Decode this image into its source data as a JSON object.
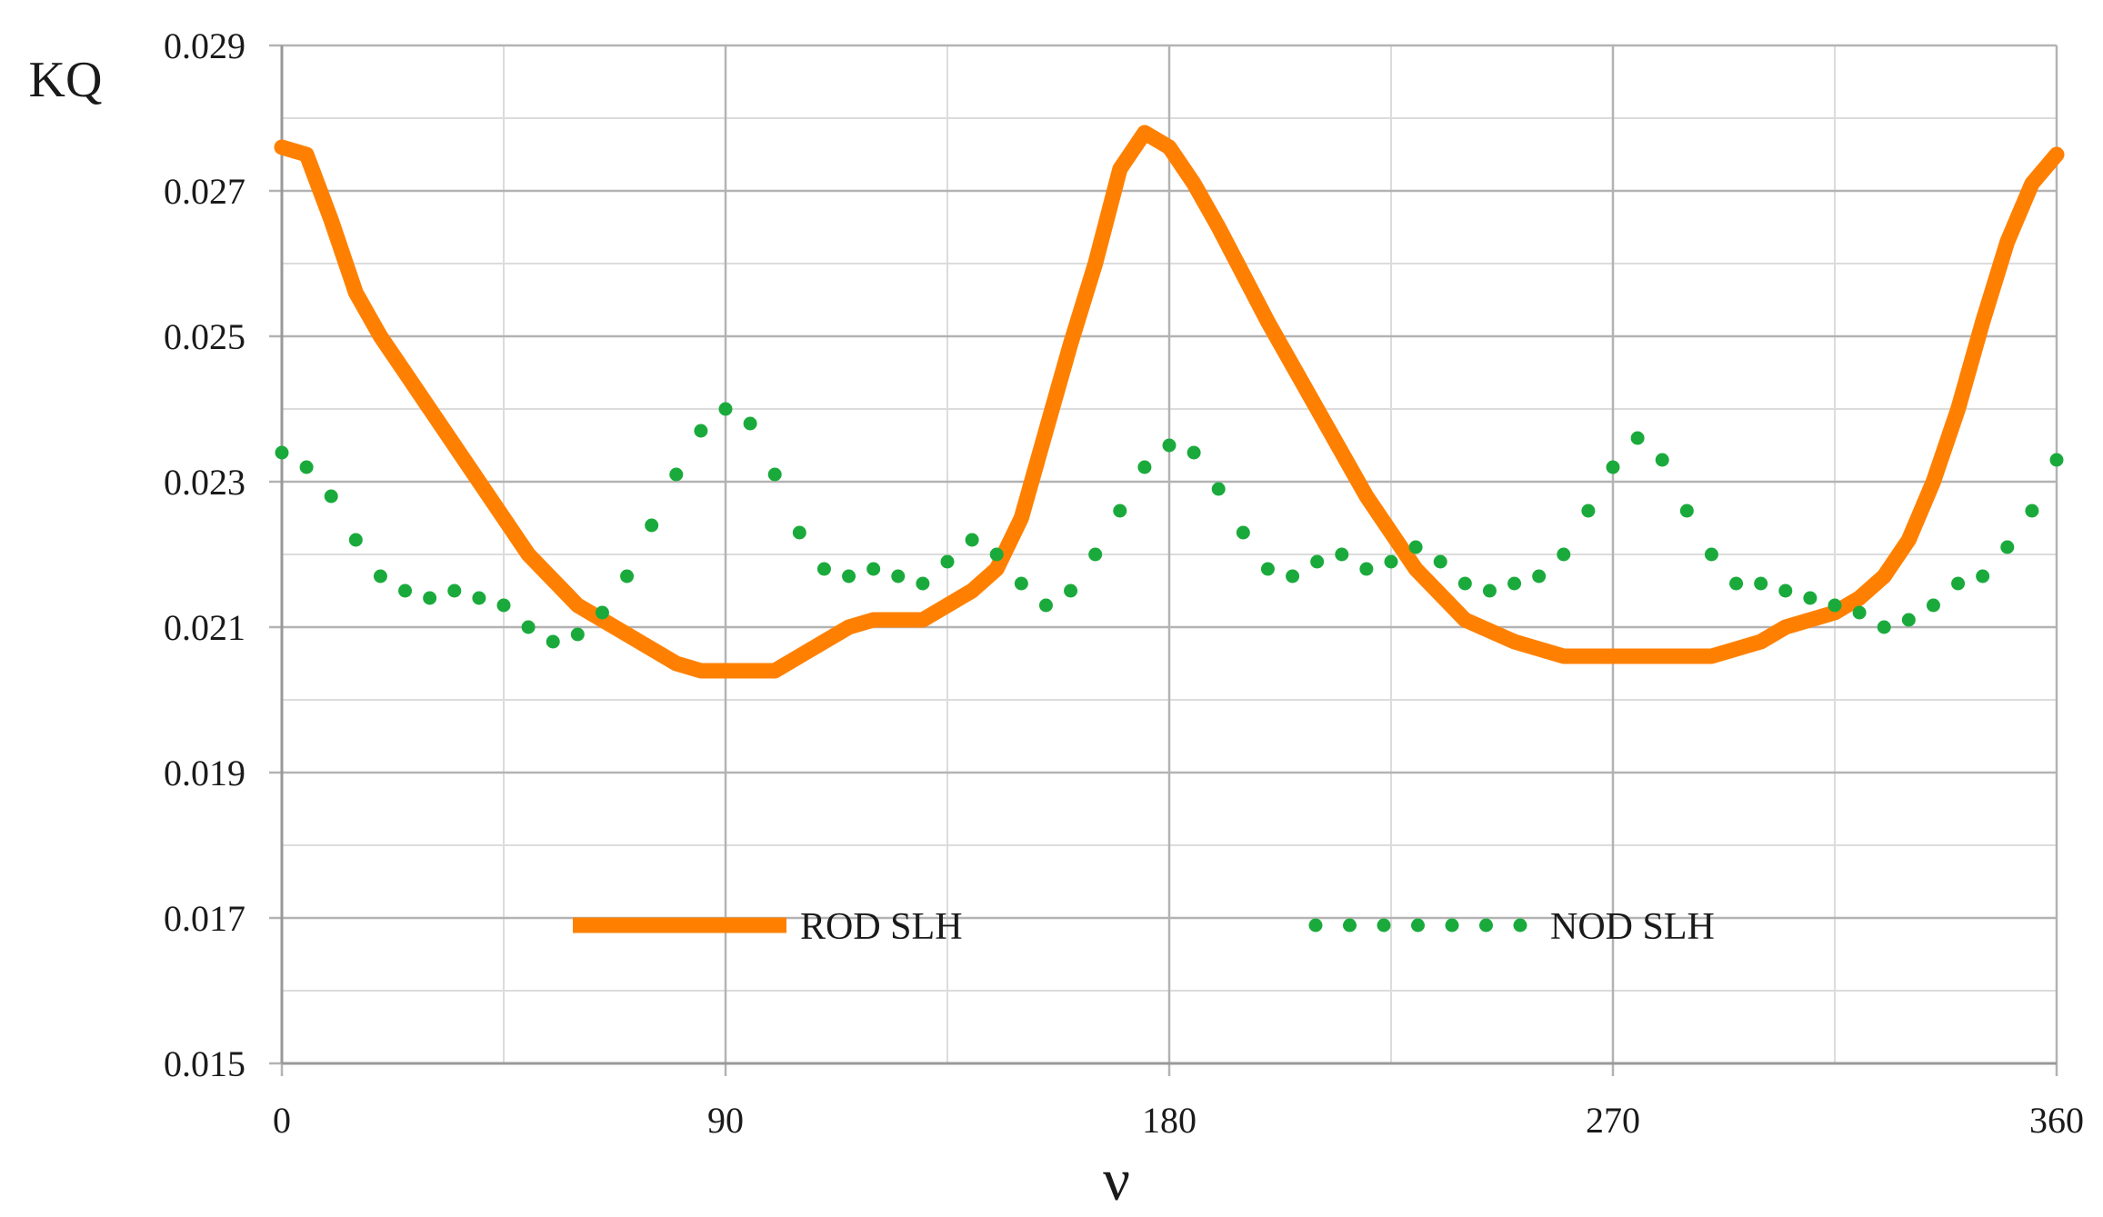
{
  "chart_data": {
    "type": "line",
    "xlabel": "ν",
    "ylabel": "KQ",
    "xlim": [
      0,
      360
    ],
    "ylim": [
      0.015,
      0.029
    ],
    "x_ticks": [
      {
        "value": 0,
        "label": "0"
      },
      {
        "value": 90,
        "label": "90"
      },
      {
        "value": 180,
        "label": "180"
      },
      {
        "value": 270,
        "label": "270"
      },
      {
        "value": 360,
        "label": "360"
      }
    ],
    "y_ticks": [
      {
        "value": 0.015,
        "label": "0.015"
      },
      {
        "value": 0.017,
        "label": "0.017"
      },
      {
        "value": 0.019,
        "label": "0.019"
      },
      {
        "value": 0.021,
        "label": "0.021"
      },
      {
        "value": 0.023,
        "label": "0.023"
      },
      {
        "value": 0.025,
        "label": "0.025"
      },
      {
        "value": 0.027,
        "label": "0.027"
      },
      {
        "value": 0.029,
        "label": "0.029"
      }
    ],
    "grid": true,
    "legend_position": "bottom-center",
    "series": [
      {
        "name": "ROD SLH",
        "style": "solid",
        "color": "#ff8000",
        "x": [
          0,
          5,
          10,
          15,
          20,
          25,
          30,
          40,
          50,
          60,
          70,
          80,
          85,
          90,
          95,
          100,
          105,
          110,
          115,
          120,
          125,
          130,
          135,
          140,
          145,
          150,
          155,
          160,
          165,
          170,
          175,
          180,
          185,
          190,
          200,
          210,
          220,
          230,
          240,
          250,
          255,
          260,
          265,
          270,
          275,
          280,
          285,
          290,
          295,
          300,
          305,
          310,
          315,
          320,
          325,
          330,
          335,
          340,
          345,
          350,
          355,
          360
        ],
        "y": [
          0.0276,
          0.0275,
          0.0266,
          0.0256,
          0.025,
          0.0245,
          0.024,
          0.023,
          0.022,
          0.0213,
          0.0209,
          0.0205,
          0.0204,
          0.0204,
          0.0204,
          0.0204,
          0.0206,
          0.0208,
          0.021,
          0.0211,
          0.0211,
          0.0211,
          0.0213,
          0.0215,
          0.0218,
          0.0225,
          0.0237,
          0.0249,
          0.026,
          0.0273,
          0.0278,
          0.0276,
          0.0271,
          0.0265,
          0.0252,
          0.024,
          0.0228,
          0.0218,
          0.0211,
          0.0208,
          0.0207,
          0.0206,
          0.0206,
          0.0206,
          0.0206,
          0.0206,
          0.0206,
          0.0206,
          0.0207,
          0.0208,
          0.021,
          0.0211,
          0.0212,
          0.0214,
          0.0217,
          0.0222,
          0.023,
          0.024,
          0.0252,
          0.0263,
          0.0271,
          0.0275
        ]
      },
      {
        "name": "NOD SLH",
        "style": "dotted",
        "color": "#1aaa3c",
        "x": [
          0,
          5,
          10,
          15,
          20,
          25,
          30,
          35,
          40,
          45,
          50,
          55,
          60,
          65,
          70,
          75,
          80,
          85,
          90,
          95,
          100,
          105,
          110,
          115,
          120,
          125,
          130,
          135,
          140,
          145,
          150,
          155,
          160,
          165,
          170,
          175,
          180,
          185,
          190,
          195,
          200,
          205,
          210,
          215,
          220,
          225,
          230,
          235,
          240,
          245,
          250,
          255,
          260,
          265,
          270,
          275,
          280,
          285,
          290,
          295,
          300,
          305,
          310,
          315,
          320,
          325,
          330,
          335,
          340,
          345,
          350,
          355,
          360
        ],
        "y": [
          0.0234,
          0.0232,
          0.0228,
          0.0222,
          0.0217,
          0.0215,
          0.0214,
          0.0215,
          0.0214,
          0.0213,
          0.021,
          0.0208,
          0.0209,
          0.0212,
          0.0217,
          0.0224,
          0.0231,
          0.0237,
          0.024,
          0.0238,
          0.0231,
          0.0223,
          0.0218,
          0.0217,
          0.0218,
          0.0217,
          0.0216,
          0.0219,
          0.0222,
          0.022,
          0.0216,
          0.0213,
          0.0215,
          0.022,
          0.0226,
          0.0232,
          0.0235,
          0.0234,
          0.0229,
          0.0223,
          0.0218,
          0.0217,
          0.0219,
          0.022,
          0.0218,
          0.0219,
          0.0221,
          0.0219,
          0.0216,
          0.0215,
          0.0216,
          0.0217,
          0.022,
          0.0226,
          0.0232,
          0.0236,
          0.0233,
          0.0226,
          0.022,
          0.0216,
          0.0216,
          0.0215,
          0.0214,
          0.0213,
          0.0212,
          0.021,
          0.0211,
          0.0213,
          0.0216,
          0.0217,
          0.0221,
          0.0226,
          0.0233
        ]
      }
    ]
  }
}
